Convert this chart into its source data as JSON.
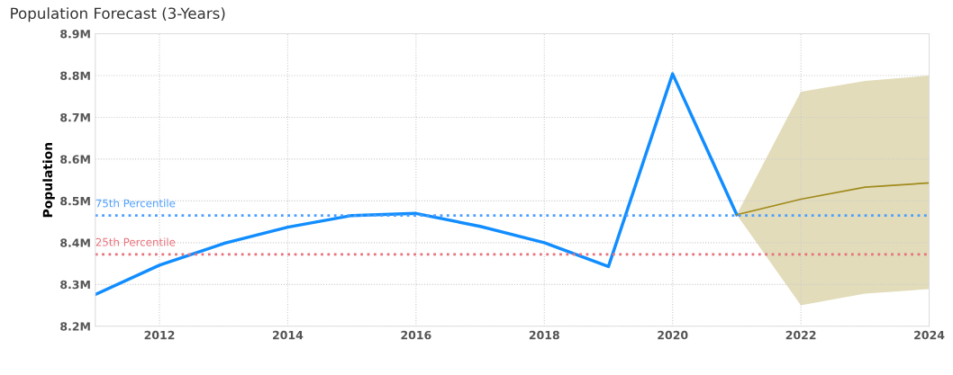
{
  "chart_data": {
    "type": "line",
    "title": "Population Forecast (3-Years)",
    "ylabel": "Population",
    "series": [
      {
        "color": "#118dff",
        "x": [
          2011,
          2012,
          2013,
          2014,
          2015,
          2016,
          2017,
          2018,
          2019,
          2020,
          2021
        ],
        "values": [
          8.276,
          8.346,
          8.398,
          8.437,
          8.465,
          8.47,
          8.439,
          8.4,
          8.343,
          8.804,
          8.467
        ]
      },
      {
        "color": "#a08a1c",
        "x": [
          2021,
          2022,
          2023,
          2024
        ],
        "values": [
          8.467,
          8.504,
          8.533,
          8.543
        ],
        "lower": [
          8.467,
          8.25,
          8.278,
          8.289
        ],
        "upper": [
          8.467,
          8.761,
          8.787,
          8.8
        ]
      }
    ],
    "xlim": [
      2011,
      2024
    ],
    "xticks": [
      2012,
      2014,
      2016,
      2018,
      2020,
      2022,
      2024
    ],
    "ylim": [
      8.2,
      8.9
    ],
    "yticks": [
      {
        "value": 8.2,
        "label": "8.2M"
      },
      {
        "value": 8.3,
        "label": "8.3M"
      },
      {
        "value": 8.4,
        "label": "8.4M"
      },
      {
        "value": 8.5,
        "label": "8.5M"
      },
      {
        "value": 8.6,
        "label": "8.6M"
      },
      {
        "value": 8.7,
        "label": "8.7M"
      },
      {
        "value": 8.8,
        "label": "8.8M"
      },
      {
        "value": 8.9,
        "label": "8.9M"
      }
    ],
    "ref_lines": [
      {
        "axis": "y",
        "value": 8.465,
        "label": "75th Percentile",
        "color": "#4a9eff",
        "line_style": "dotted"
      },
      {
        "axis": "y",
        "value": 8.372,
        "label": "25th Percentile",
        "color": "#e8707a",
        "line_style": "dotted"
      }
    ],
    "grid": true,
    "line_style": "solid",
    "marker": "none",
    "legend": false
  }
}
